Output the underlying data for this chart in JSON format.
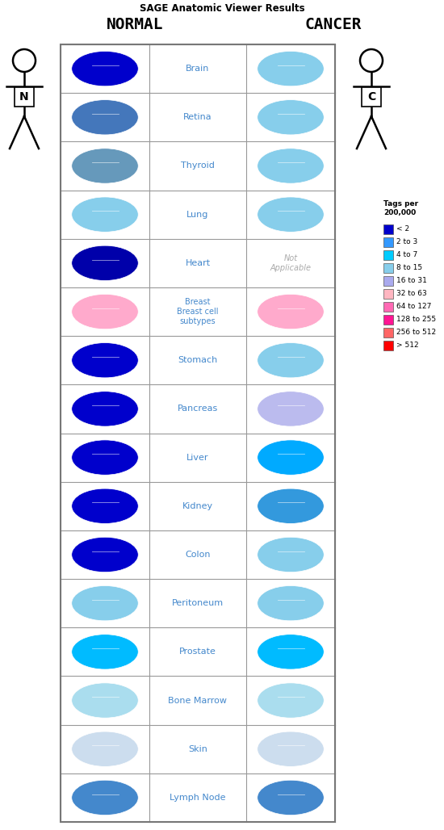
{
  "title": "SAGE Anatomic Viewer Results",
  "normal_label": "NORMAL",
  "cancer_label": "CANCER",
  "figsize": [
    5.5,
    10.28
  ],
  "dpi": 100,
  "organs": [
    {
      "name": "Brain",
      "normal_color": "#0000CC",
      "cancer_color": "#87CEEB",
      "cancer_text": null,
      "normal_unicode": "❠",
      "cancer_unicode": "❠"
    },
    {
      "name": "Retina",
      "normal_color": "#4477BB",
      "cancer_color": "#87CEEB",
      "cancer_text": null,
      "normal_unicode": "◎",
      "cancer_unicode": "◎"
    },
    {
      "name": "Thyroid",
      "normal_color": "#6699BB",
      "cancer_color": "#87CEEB",
      "cancer_text": null,
      "normal_unicode": "❁",
      "cancer_unicode": "❁"
    },
    {
      "name": "Lung",
      "normal_color": "#87CEEB",
      "cancer_color": "#87CEEB",
      "cancer_text": null,
      "normal_unicode": "❧",
      "cancer_unicode": "❧"
    },
    {
      "name": "Heart",
      "normal_color": "#0000AA",
      "cancer_color": null,
      "cancer_text": "Not\nApplicable",
      "normal_unicode": "♥",
      "cancer_unicode": null
    },
    {
      "name": "Breast\nBreast cell\nsubtypes",
      "normal_color": "#FFAACC",
      "cancer_color": "#FFAACC",
      "cancer_text": null,
      "normal_unicode": "✿",
      "cancer_unicode": "✿"
    },
    {
      "name": "Stomach",
      "normal_color": "#0000CC",
      "cancer_color": "#87CEEB",
      "cancer_text": null,
      "normal_unicode": "❧",
      "cancer_unicode": "❧"
    },
    {
      "name": "Pancreas",
      "normal_color": "#0000CC",
      "cancer_color": "#BBBBEE",
      "cancer_text": null,
      "normal_unicode": "≈",
      "cancer_unicode": "≈"
    },
    {
      "name": "Liver",
      "normal_color": "#0000CC",
      "cancer_color": "#00AAFF",
      "cancer_text": null,
      "normal_unicode": "■",
      "cancer_unicode": "■"
    },
    {
      "name": "Kidney",
      "normal_color": "#0000CC",
      "cancer_color": "#3399DD",
      "cancer_text": null,
      "normal_unicode": "❧",
      "cancer_unicode": "❧"
    },
    {
      "name": "Colon",
      "normal_color": "#0000CC",
      "cancer_color": "#87CEEB",
      "cancer_text": null,
      "normal_unicode": "➳",
      "cancer_unicode": "➳"
    },
    {
      "name": "Peritoneum",
      "normal_color": "#87CEEB",
      "cancer_color": "#87CEEB",
      "cancer_text": null,
      "normal_unicode": "▦",
      "cancer_unicode": "▦"
    },
    {
      "name": "Prostate",
      "normal_color": "#00BBFF",
      "cancer_color": "#00BBFF",
      "cancer_text": null,
      "normal_unicode": "✼",
      "cancer_unicode": "✼"
    },
    {
      "name": "Bone Marrow",
      "normal_color": "#AADDEE",
      "cancer_color": "#AADDEE",
      "cancer_text": null,
      "normal_unicode": "❧",
      "cancer_unicode": "❧"
    },
    {
      "name": "Skin",
      "normal_color": "#CCDDEE",
      "cancer_color": "#CCDDEE",
      "cancer_text": null,
      "normal_unicode": "▬",
      "cancer_unicode": "▬"
    },
    {
      "name": "Lymph Node",
      "normal_color": "#4488CC",
      "cancer_color": "#4488CC",
      "cancer_text": null,
      "normal_unicode": "❂",
      "cancer_unicode": "❂"
    }
  ],
  "legend_title": "Tags per\n200,000",
  "legend_items": [
    {
      "label": "< 2",
      "color": "#0000CC"
    },
    {
      "label": "2 to 3",
      "color": "#3399FF"
    },
    {
      "label": "4 to 7",
      "color": "#00CCFF"
    },
    {
      "label": "8 to 15",
      "color": "#87CEEB"
    },
    {
      "label": "16 to 31",
      "color": "#AAAAEE"
    },
    {
      "label": "32 to 63",
      "color": "#FFB6C1"
    },
    {
      "label": "64 to 127",
      "color": "#FF69B4"
    },
    {
      "label": "128 to 255",
      "color": "#FF1493"
    },
    {
      "label": "256 to 512",
      "color": "#FF6666"
    },
    {
      "label": "> 512",
      "color": "#FF0000"
    }
  ],
  "bg_color": "#FFFFFF",
  "grid_color": "#999999",
  "label_text_color": "#4488CC",
  "not_applicable_color": "#AAAAAA",
  "organ_row_heights": [
    55,
    48,
    48,
    58,
    52,
    70,
    48,
    48,
    48,
    52,
    60,
    65,
    48,
    75,
    60,
    70
  ]
}
